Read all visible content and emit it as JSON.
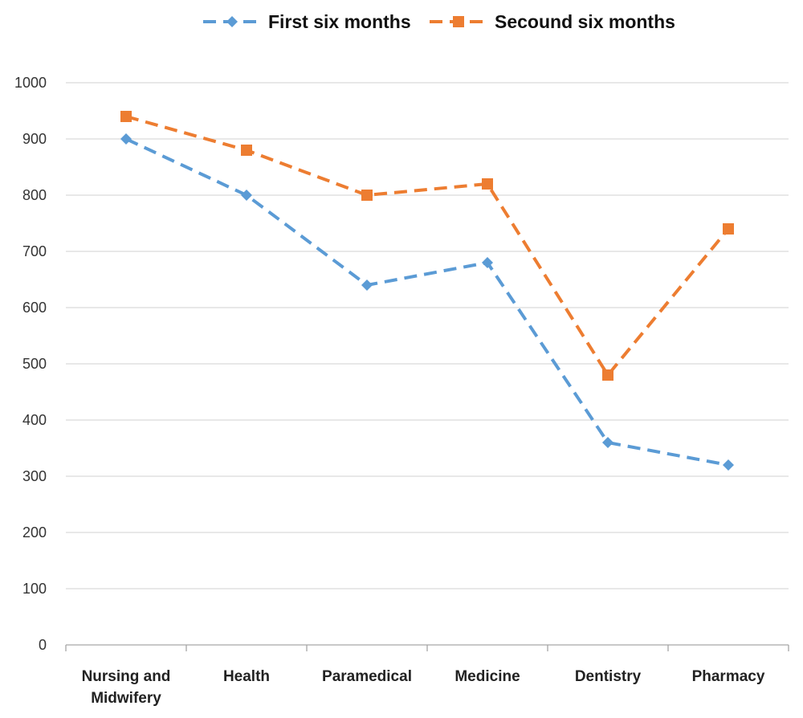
{
  "chart_data": {
    "type": "line",
    "categories": [
      "Nursing and Midwifery",
      "Health",
      "Paramedical",
      "Medicine",
      "Dentistry",
      "Pharmacy"
    ],
    "category_lines": [
      [
        "Nursing and",
        "Midwifery"
      ],
      [
        "Health"
      ],
      [
        "Paramedical"
      ],
      [
        "Medicine"
      ],
      [
        "Dentistry"
      ],
      [
        "Pharmacy"
      ]
    ],
    "series": [
      {
        "name": "First six months",
        "values": [
          900,
          800,
          640,
          680,
          360,
          320
        ],
        "color": "#5b9bd5",
        "marker": "diamond",
        "line_style": "dashed"
      },
      {
        "name": "Secound six months",
        "values": [
          940,
          880,
          800,
          820,
          480,
          740
        ],
        "color": "#ed7d31",
        "marker": "square",
        "line_style": "dashed"
      }
    ],
    "ylim": [
      0,
      1000
    ],
    "yticks": [
      0,
      100,
      200,
      300,
      400,
      500,
      600,
      700,
      800,
      900,
      1000
    ],
    "grid": true,
    "legend_position": "top-center",
    "title": "",
    "xlabel": "",
    "ylabel": ""
  }
}
